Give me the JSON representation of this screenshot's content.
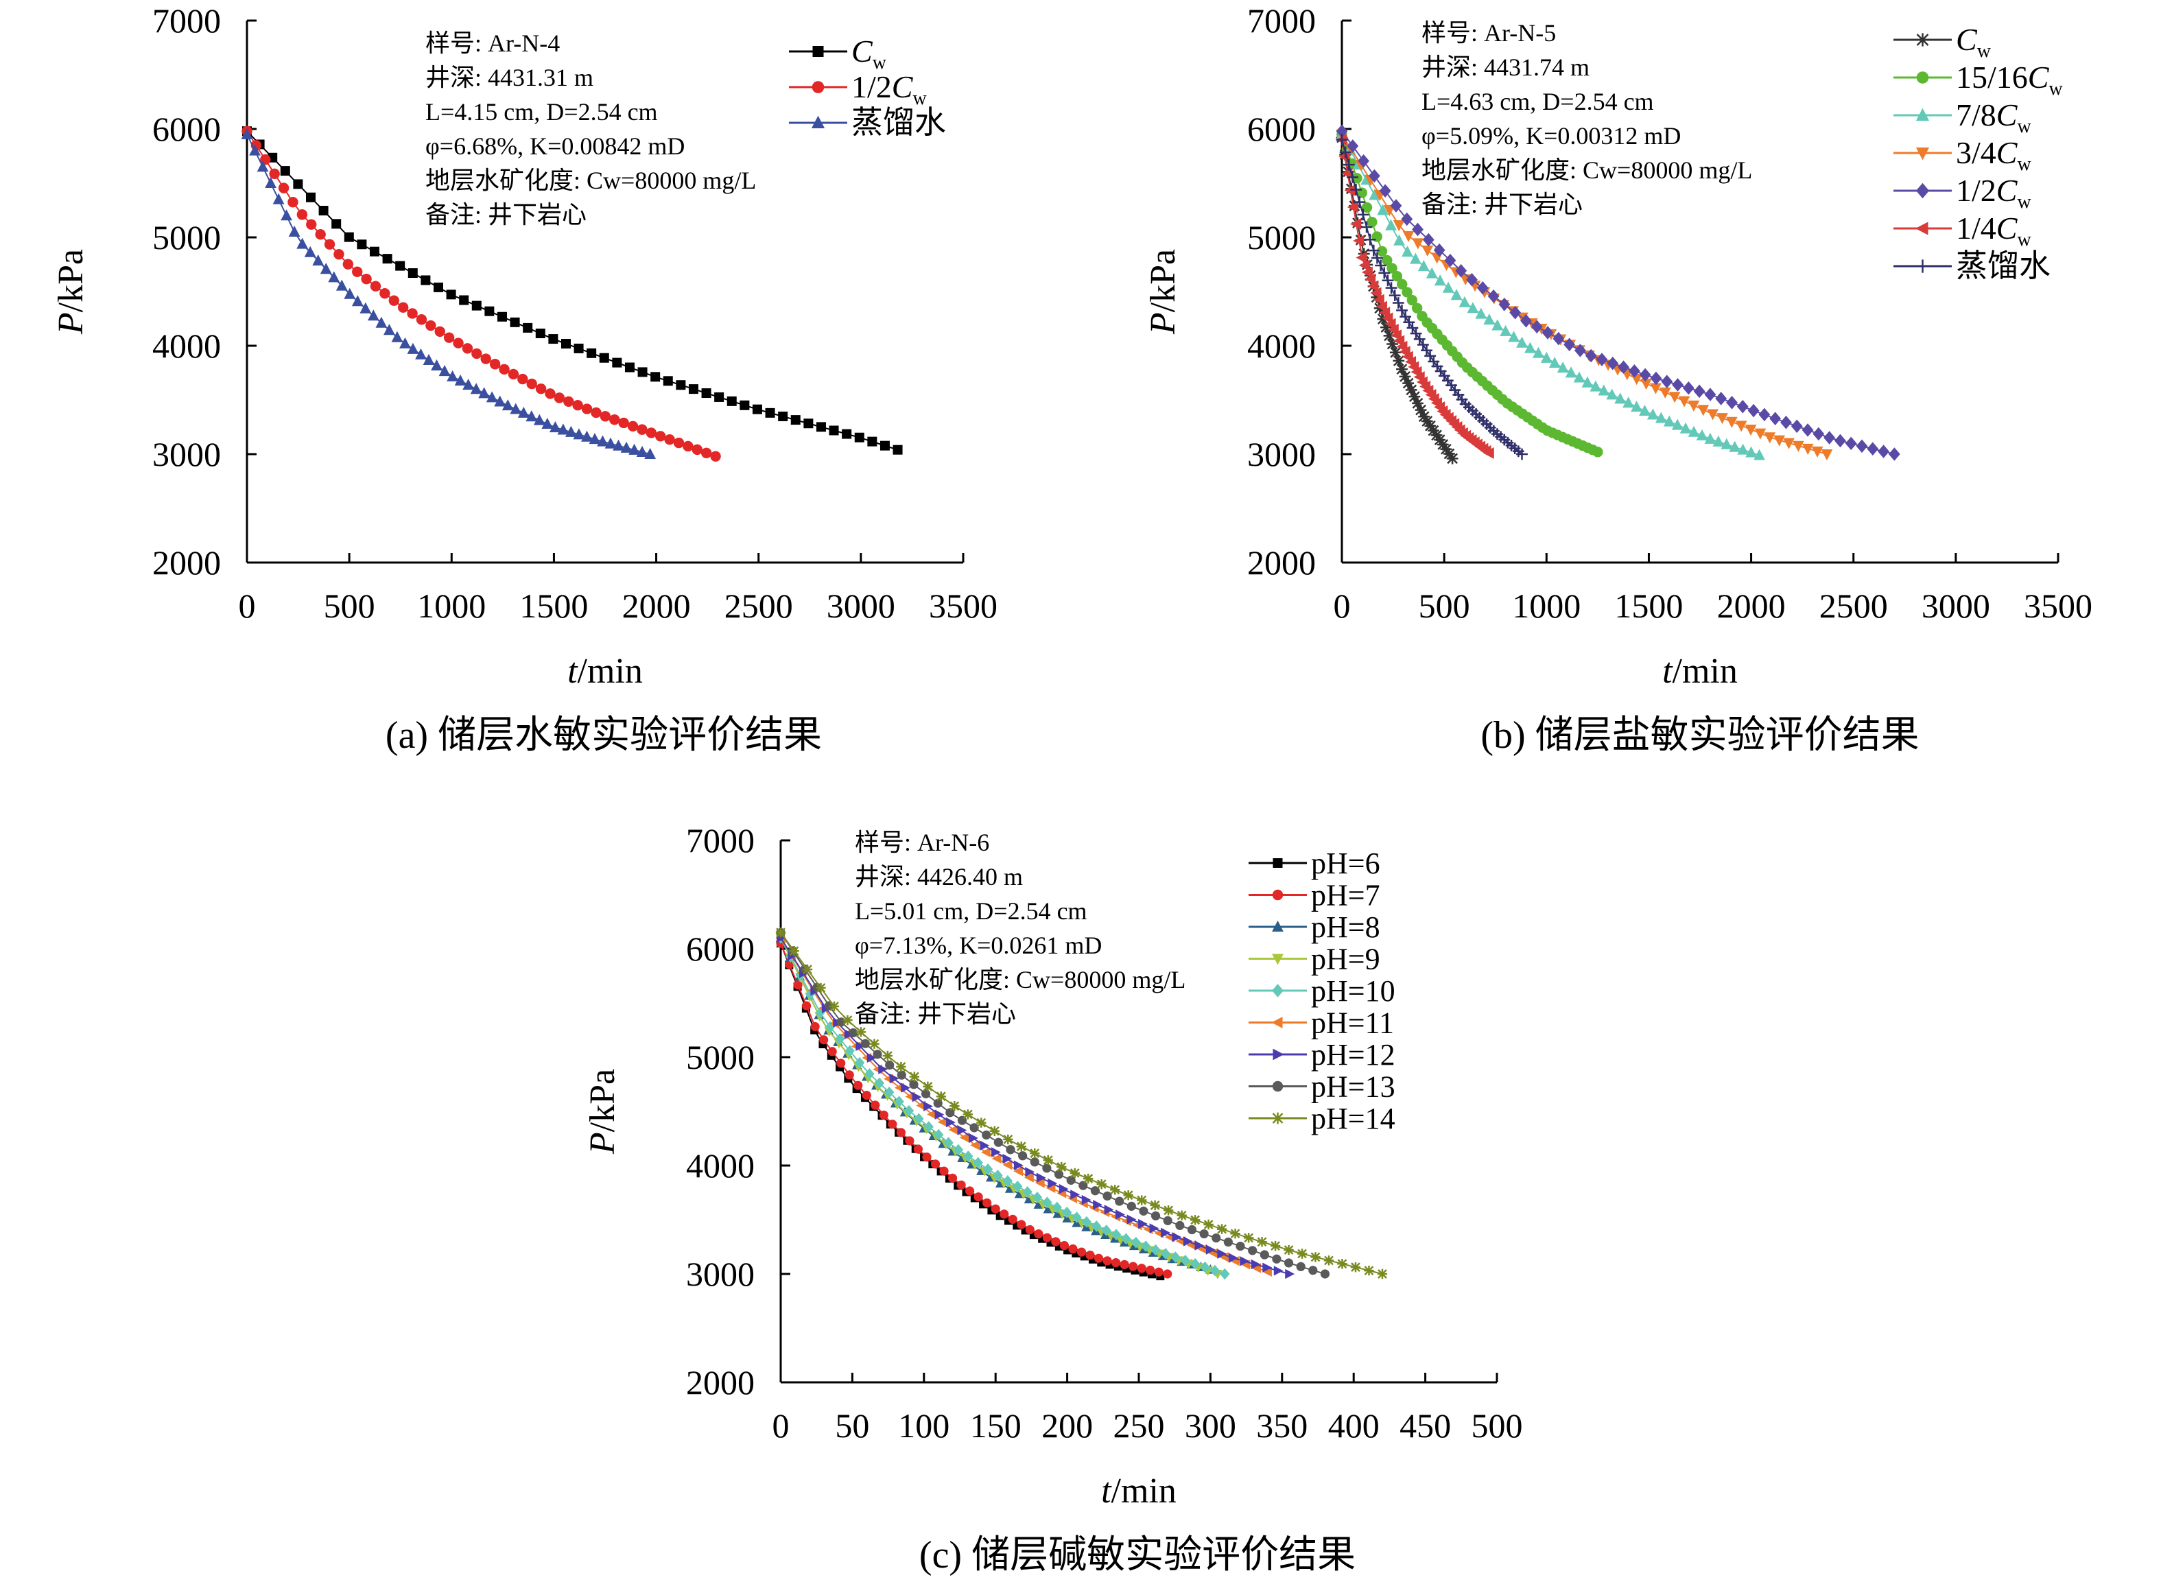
{
  "figure_captions": [
    "(a) 储层水敏实验评价结果",
    "(b) 储层盐敏实验评价结果",
    "(c) 储层碱敏实验评价结果"
  ],
  "chart_data": [
    {
      "type": "scatter",
      "caption": "(a) 储层水敏实验评价结果",
      "xlabel": "t/min",
      "ylabel": "P/kPa",
      "xlim": [
        0,
        3500
      ],
      "ylim": [
        2000,
        7000
      ],
      "xticks": [
        "0",
        "500",
        "1000",
        "1500",
        "2000",
        "2500",
        "3000",
        "3500"
      ],
      "yticks": [
        "2000",
        "3000",
        "4000",
        "5000",
        "6000",
        "7000"
      ],
      "annotations": [
        "样号: Ar-N-4",
        "井深: 4431.31 m",
        "L=4.15 cm, D=2.54 cm",
        "φ=6.68%, K=0.00842 mD",
        "地层水矿化度: Cw=80000 mg/L",
        "备注: 井下岩心"
      ],
      "legend_position": "top-right",
      "grid": false,
      "series": [
        {
          "name": "Cw",
          "label_main": "C",
          "label_sub": "w",
          "color": "#000000",
          "marker": "square",
          "x": [
            0,
            500,
            1000,
            1500,
            2000,
            2500,
            3000,
            3180
          ],
          "y": [
            5980,
            5000,
            4470,
            4060,
            3710,
            3410,
            3150,
            3040
          ]
        },
        {
          "name": "1/2Cw",
          "label_main": "1/2C",
          "label_sub": "w",
          "color": "#e32626",
          "marker": "circle",
          "x": [
            0,
            250,
            500,
            750,
            1000,
            1250,
            1500,
            1750,
            2000,
            2290
          ],
          "y": [
            5980,
            5250,
            4740,
            4370,
            4060,
            3790,
            3540,
            3350,
            3180,
            2980
          ]
        },
        {
          "name": "蒸馏水",
          "label_main": "蒸馏水",
          "label_sub": "",
          "color": "#3a4fa0",
          "marker": "triangle",
          "x": [
            0,
            250,
            500,
            750,
            1000,
            1250,
            1500,
            1750,
            1970
          ],
          "y": [
            5950,
            4980,
            4480,
            4050,
            3720,
            3470,
            3250,
            3110,
            3000
          ]
        }
      ]
    },
    {
      "type": "scatter",
      "caption": "(b) 储层盐敏实验评价结果",
      "xlabel": "t/min",
      "ylabel": "P/kPa",
      "xlim": [
        0,
        3500
      ],
      "ylim": [
        2000,
        7000
      ],
      "xticks": [
        "0",
        "500",
        "1000",
        "1500",
        "2000",
        "2500",
        "3000",
        "3500"
      ],
      "yticks": [
        "2000",
        "3000",
        "4000",
        "5000",
        "6000",
        "7000"
      ],
      "annotations": [
        "样号: Ar-N-5",
        "井深: 4431.74 m",
        "L=4.63 cm, D=2.54 cm",
        "φ=5.09%, K=0.00312 mD",
        "地层水矿化度: Cw=80000 mg/L",
        "备注: 井下岩心"
      ],
      "legend_position": "top-right",
      "grid": false,
      "series": [
        {
          "name": "Cw",
          "label_main": "C",
          "label_sub": "w",
          "color": "#333333",
          "marker": "star",
          "x": [
            0,
            100,
            200,
            300,
            400,
            540
          ],
          "y": [
            5920,
            4900,
            4250,
            3750,
            3350,
            2960
          ]
        },
        {
          "name": "15/16Cw",
          "label_main": "15/16C",
          "label_sub": "w",
          "color": "#5cb830",
          "marker": "circle",
          "x": [
            0,
            200,
            400,
            600,
            800,
            1000,
            1250
          ],
          "y": [
            5950,
            4850,
            4250,
            3820,
            3480,
            3220,
            3020
          ]
        },
        {
          "name": "7/8Cw",
          "label_main": "7/8C",
          "label_sub": "w",
          "color": "#62c9b8",
          "marker": "triangle",
          "x": [
            0,
            300,
            600,
            900,
            1200,
            1500,
            1800,
            2040
          ],
          "y": [
            5950,
            4900,
            4400,
            4000,
            3660,
            3380,
            3140,
            2990
          ]
        },
        {
          "name": "3/4Cw",
          "label_main": "3/4C",
          "label_sub": "w",
          "color": "#ee7b2a",
          "marker": "triangle-down",
          "x": [
            0,
            300,
            600,
            900,
            1200,
            1500,
            1800,
            2100,
            2370
          ],
          "y": [
            5950,
            5050,
            4620,
            4240,
            3920,
            3640,
            3380,
            3150,
            3000
          ]
        },
        {
          "name": "1/2Cw",
          "label_main": "1/2C",
          "label_sub": "w",
          "color": "#5a4aa6",
          "marker": "diamond",
          "x": [
            0,
            300,
            600,
            900,
            1200,
            1500,
            1800,
            2100,
            2400,
            2700
          ],
          "y": [
            5980,
            5200,
            4660,
            4230,
            3920,
            3720,
            3550,
            3340,
            3140,
            3000
          ]
        },
        {
          "name": "1/4Cw",
          "label_main": "1/4C",
          "label_sub": "w",
          "color": "#d93a3a",
          "marker": "triangle-left",
          "x": [
            0,
            100,
            200,
            300,
            400,
            500,
            600,
            720
          ],
          "y": [
            5900,
            4800,
            4350,
            3980,
            3650,
            3380,
            3180,
            3010
          ]
        },
        {
          "name": "蒸馏水",
          "label_main": "蒸馏水",
          "label_sub": "",
          "color": "#2f2f6a",
          "marker": "plus",
          "x": [
            0,
            150,
            300,
            450,
            600,
            750,
            880
          ],
          "y": [
            5900,
            4900,
            4300,
            3850,
            3470,
            3200,
            3000
          ]
        }
      ]
    },
    {
      "type": "scatter",
      "caption": "(c) 储层碱敏实验评价结果",
      "xlabel": "t/min",
      "ylabel": "P/kPa",
      "xlim": [
        0,
        500
      ],
      "ylim": [
        2000,
        7000
      ],
      "xticks": [
        "0",
        "50",
        "100",
        "150",
        "200",
        "250",
        "300",
        "350",
        "400",
        "450",
        "500"
      ],
      "yticks": [
        "2000",
        "3000",
        "4000",
        "5000",
        "6000",
        "7000"
      ],
      "annotations": [
        "样号: Ar-N-6",
        "井深: 4426.40 m",
        "L=5.01 cm, D=2.54 cm",
        "φ=7.13%, K=0.0261 mD",
        "地层水矿化度: Cw=80000 mg/L",
        "备注: 井下岩心"
      ],
      "legend_position": "top-right",
      "grid": false,
      "series": [
        {
          "name": "pH=6",
          "color": "#000000",
          "marker": "square",
          "x": [
            0,
            25,
            50,
            75,
            100,
            125,
            150,
            175,
            200,
            225,
            265
          ],
          "y": [
            6050,
            5200,
            4750,
            4400,
            4080,
            3800,
            3560,
            3370,
            3220,
            3100,
            2980
          ]
        },
        {
          "name": "pH=7",
          "color": "#e32626",
          "marker": "circle",
          "x": [
            0,
            25,
            50,
            75,
            100,
            125,
            150,
            175,
            200,
            225,
            270
          ],
          "y": [
            6050,
            5250,
            4800,
            4420,
            4100,
            3830,
            3600,
            3400,
            3250,
            3130,
            3000
          ]
        },
        {
          "name": "pH=8",
          "color": "#2a5f8a",
          "marker": "triangle",
          "x": [
            0,
            30,
            60,
            90,
            120,
            150,
            180,
            210,
            240,
            270,
            300
          ],
          "y": [
            6100,
            5300,
            4820,
            4450,
            4130,
            3860,
            3640,
            3450,
            3290,
            3150,
            3040
          ]
        },
        {
          "name": "pH=9",
          "color": "#a8c83a",
          "marker": "triangle-down",
          "x": [
            0,
            30,
            60,
            90,
            120,
            150,
            180,
            210,
            240,
            270,
            305
          ],
          "y": [
            6100,
            5300,
            4820,
            4460,
            4150,
            3880,
            3660,
            3470,
            3300,
            3160,
            3000
          ]
        },
        {
          "name": "pH=10",
          "color": "#62c9b8",
          "marker": "diamond",
          "x": [
            0,
            30,
            60,
            90,
            120,
            150,
            180,
            210,
            240,
            270,
            310
          ],
          "y": [
            6100,
            5350,
            4870,
            4500,
            4180,
            3920,
            3700,
            3500,
            3330,
            3180,
            3000
          ]
        },
        {
          "name": "pH=11",
          "color": "#ee7b2a",
          "marker": "triangle-left",
          "x": [
            0,
            35,
            70,
            105,
            140,
            175,
            210,
            245,
            280,
            315,
            340
          ],
          "y": [
            6100,
            5350,
            4860,
            4480,
            4150,
            3880,
            3660,
            3470,
            3300,
            3130,
            3020
          ]
        },
        {
          "name": "pH=12",
          "color": "#4b3bb0",
          "marker": "triangle-right",
          "x": [
            0,
            35,
            70,
            105,
            140,
            175,
            210,
            245,
            280,
            315,
            355
          ],
          "y": [
            6100,
            5380,
            4900,
            4520,
            4200,
            3930,
            3700,
            3500,
            3320,
            3150,
            3000
          ]
        },
        {
          "name": "pH=13",
          "color": "#5a5a5a",
          "marker": "circle",
          "x": [
            0,
            40,
            80,
            120,
            160,
            200,
            240,
            280,
            320,
            350,
            380
          ],
          "y": [
            6150,
            5350,
            4880,
            4470,
            4150,
            3880,
            3650,
            3440,
            3260,
            3120,
            3000
          ]
        },
        {
          "name": "pH=14",
          "color": "#7a8a20",
          "marker": "star",
          "x": [
            0,
            40,
            80,
            120,
            160,
            200,
            240,
            280,
            320,
            360,
            420
          ],
          "y": [
            6150,
            5420,
            4950,
            4560,
            4230,
            3960,
            3740,
            3540,
            3360,
            3200,
            3000
          ]
        }
      ]
    }
  ]
}
